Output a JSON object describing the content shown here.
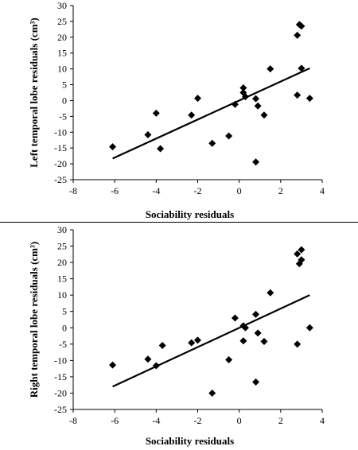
{
  "chart_data": [
    {
      "type": "scatter",
      "xlabel": "Sociability residuals",
      "ylabel": "Left temporal lobe residuals (cm³)",
      "xlim": [
        -8,
        4
      ],
      "ylim": [
        -25,
        30
      ],
      "x_ticks": [
        "-8",
        "-6",
        "-4",
        "-2",
        "0",
        "2",
        "4"
      ],
      "y_ticks": [
        "30",
        "25",
        "20",
        "15",
        "10",
        "5",
        "0",
        "-5",
        "-10",
        "-15",
        "-20",
        "-25"
      ],
      "points": [
        {
          "x": -6.1,
          "y": -14.6
        },
        {
          "x": -4.4,
          "y": -10.8
        },
        {
          "x": -4.0,
          "y": -4.0
        },
        {
          "x": -3.8,
          "y": -15.2
        },
        {
          "x": -2.3,
          "y": -4.6
        },
        {
          "x": -2.0,
          "y": 0.7
        },
        {
          "x": -1.3,
          "y": -13.5
        },
        {
          "x": -0.5,
          "y": -11.2
        },
        {
          "x": -0.2,
          "y": -1.2
        },
        {
          "x": 0.2,
          "y": 4.0
        },
        {
          "x": 0.2,
          "y": 2.5
        },
        {
          "x": 0.3,
          "y": 1.2
        },
        {
          "x": 0.8,
          "y": 0.6
        },
        {
          "x": 0.9,
          "y": -1.7
        },
        {
          "x": 0.8,
          "y": -19.4
        },
        {
          "x": 1.2,
          "y": -4.6
        },
        {
          "x": 1.5,
          "y": 10.0
        },
        {
          "x": 2.8,
          "y": 20.6
        },
        {
          "x": 2.9,
          "y": 24.0
        },
        {
          "x": 3.0,
          "y": 23.5
        },
        {
          "x": 3.0,
          "y": 10.2
        },
        {
          "x": 2.8,
          "y": 1.7
        },
        {
          "x": 3.4,
          "y": 0.7
        }
      ],
      "trendline": [
        {
          "x": -6.1,
          "y": -18.3
        },
        {
          "x": 3.4,
          "y": 10.2
        }
      ],
      "grid": false,
      "legend": "none"
    },
    {
      "type": "scatter",
      "xlabel": "Sociability residuals",
      "ylabel": "Right temporal lobe residuals (cm³)",
      "xlim": [
        -8,
        4
      ],
      "ylim": [
        -25,
        30
      ],
      "x_ticks": [
        "-8",
        "-6",
        "-4",
        "-2",
        "0",
        "2",
        "4"
      ],
      "y_ticks": [
        "30",
        "25",
        "20",
        "15",
        "10",
        "5",
        "0",
        "-5",
        "-10",
        "-15",
        "-20",
        "-25"
      ],
      "points": [
        {
          "x": -6.1,
          "y": -11.4
        },
        {
          "x": -4.4,
          "y": -9.6
        },
        {
          "x": -4.0,
          "y": -11.6
        },
        {
          "x": -3.7,
          "y": -5.4
        },
        {
          "x": -2.3,
          "y": -4.6
        },
        {
          "x": -2.0,
          "y": -3.8
        },
        {
          "x": -1.3,
          "y": -20.0
        },
        {
          "x": -0.5,
          "y": -9.8
        },
        {
          "x": -0.2,
          "y": 3.0
        },
        {
          "x": 0.2,
          "y": 0.6
        },
        {
          "x": 0.2,
          "y": -4.0
        },
        {
          "x": 0.3,
          "y": 0.0
        },
        {
          "x": 0.8,
          "y": 4.1
        },
        {
          "x": 0.9,
          "y": -1.6
        },
        {
          "x": 0.8,
          "y": -16.6
        },
        {
          "x": 1.2,
          "y": -4.2
        },
        {
          "x": 1.5,
          "y": 10.7
        },
        {
          "x": 2.8,
          "y": 22.6
        },
        {
          "x": 2.9,
          "y": 19.6
        },
        {
          "x": 3.0,
          "y": 23.9
        },
        {
          "x": 3.0,
          "y": 20.8
        },
        {
          "x": 2.8,
          "y": -5.0
        },
        {
          "x": 3.4,
          "y": 0.0
        }
      ],
      "trendline": [
        {
          "x": -6.1,
          "y": -18.0
        },
        {
          "x": 3.4,
          "y": 10.0
        }
      ],
      "grid": false,
      "legend": "none"
    }
  ]
}
